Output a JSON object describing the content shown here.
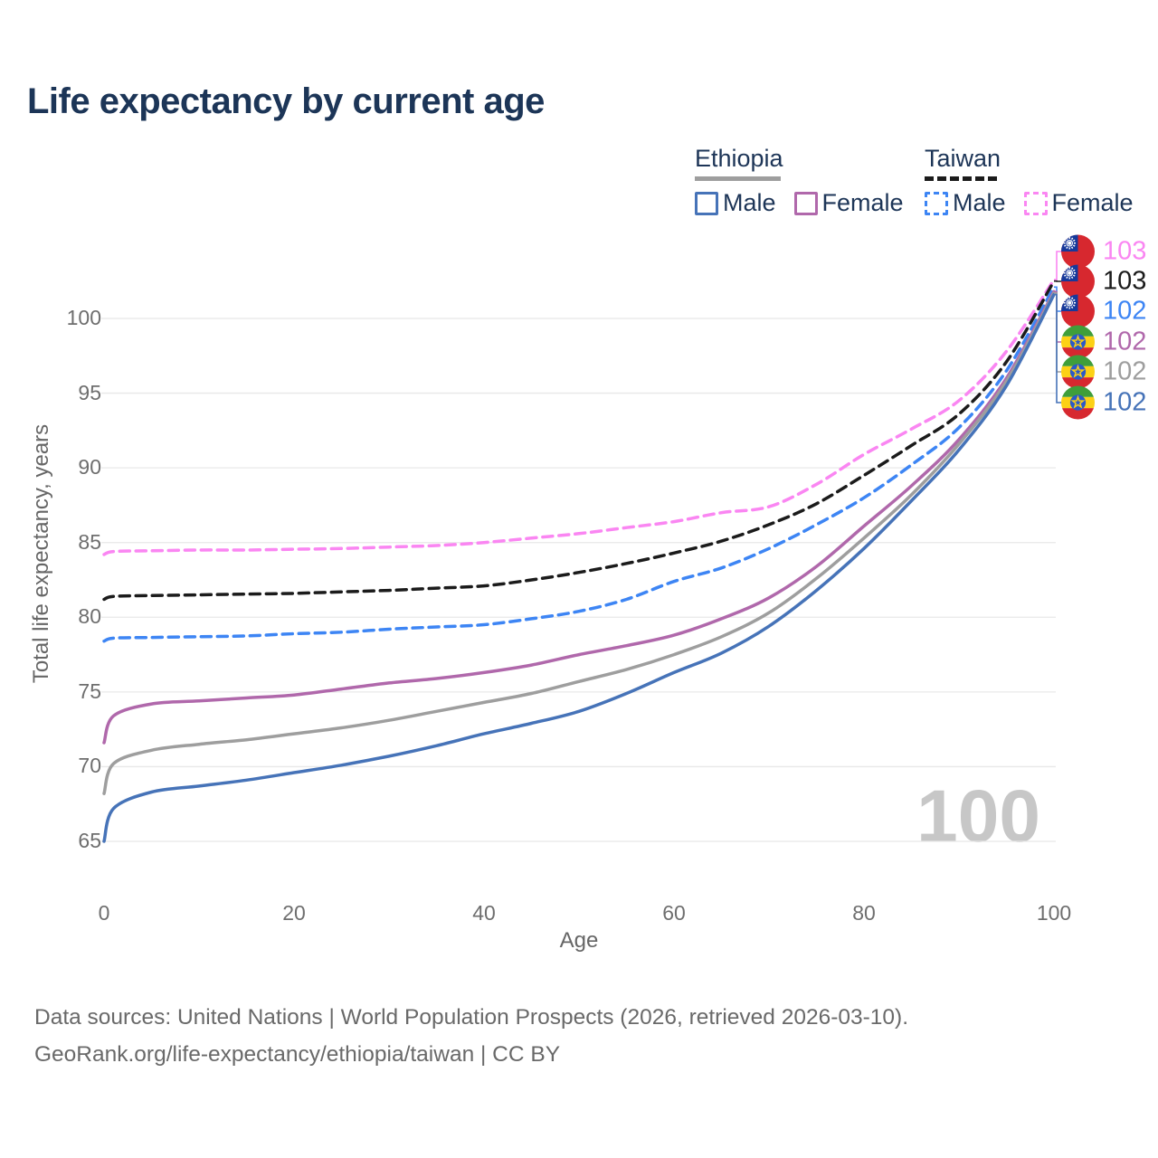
{
  "title": "Life expectancy by current age",
  "legend": {
    "groups": [
      {
        "label": "Ethiopia",
        "line_style": "solid",
        "line_color": "#9e9e9e",
        "items": [
          {
            "label": "Male",
            "color": "#4673b8"
          },
          {
            "label": "Female",
            "color": "#b068ab"
          }
        ]
      },
      {
        "label": "Taiwan",
        "line_style": "dashed",
        "line_color": "#1b1b1b",
        "items": [
          {
            "label": "Male",
            "color": "#3d85f4"
          },
          {
            "label": "Female",
            "color": "#fa86f2"
          }
        ]
      }
    ]
  },
  "chart_data": {
    "type": "line",
    "title": "Life expectancy by current age",
    "xlabel": "Age",
    "ylabel": "Total life expectancy, years",
    "xlim": [
      0,
      100
    ],
    "ylim": [
      65,
      100
    ],
    "xticks": [
      0,
      20,
      40,
      60,
      80,
      100
    ],
    "yticks": [
      65,
      70,
      75,
      80,
      85,
      90,
      95,
      100
    ],
    "grid": "horizontal",
    "legend_position": "top-right",
    "x": [
      0,
      1,
      5,
      10,
      15,
      20,
      25,
      30,
      35,
      40,
      45,
      50,
      55,
      60,
      65,
      70,
      75,
      80,
      85,
      90,
      95,
      100
    ],
    "series": [
      {
        "name": "Taiwan Female",
        "country": "Taiwan",
        "sex": "Female",
        "color": "#fa86f2",
        "dash": true,
        "end_label": "103",
        "flag": "taiwan",
        "values": [
          84.2,
          84.4,
          84.45,
          84.5,
          84.5,
          84.55,
          84.6,
          84.7,
          84.8,
          85.0,
          85.3,
          85.6,
          86.0,
          86.4,
          87.0,
          87.4,
          88.9,
          90.9,
          92.6,
          94.5,
          97.8,
          102.6
        ]
      },
      {
        "name": "Taiwan",
        "country": "Taiwan",
        "sex": "Both",
        "color": "#1b1b1b",
        "dash": true,
        "end_label": "103",
        "flag": "taiwan",
        "values": [
          81.2,
          81.4,
          81.45,
          81.5,
          81.55,
          81.6,
          81.7,
          81.8,
          81.95,
          82.1,
          82.5,
          83.0,
          83.6,
          84.3,
          85.1,
          86.2,
          87.6,
          89.5,
          91.5,
          93.6,
          97.1,
          102.5
        ]
      },
      {
        "name": "Taiwan Male",
        "country": "Taiwan",
        "sex": "Male",
        "color": "#3d85f4",
        "dash": true,
        "end_label": "102",
        "flag": "taiwan",
        "values": [
          78.4,
          78.6,
          78.65,
          78.7,
          78.75,
          78.9,
          79.0,
          79.2,
          79.35,
          79.5,
          79.9,
          80.4,
          81.2,
          82.4,
          83.3,
          84.6,
          86.2,
          88.0,
          90.2,
          92.7,
          96.5,
          102.1
        ]
      },
      {
        "name": "Ethiopia Female",
        "country": "Ethiopia",
        "sex": "Female",
        "color": "#b068ab",
        "dash": false,
        "end_label": "102",
        "flag": "ethiopia",
        "values": [
          71.6,
          73.4,
          74.2,
          74.4,
          74.6,
          74.8,
          75.2,
          75.6,
          75.9,
          76.3,
          76.8,
          77.5,
          78.1,
          78.8,
          79.9,
          81.3,
          83.4,
          86.1,
          88.8,
          91.9,
          96.0,
          101.8
        ]
      },
      {
        "name": "Ethiopia",
        "country": "Ethiopia",
        "sex": "Both",
        "color": "#9e9e9e",
        "dash": false,
        "end_label": "102",
        "flag": "ethiopia",
        "values": [
          68.2,
          70.2,
          71.1,
          71.5,
          71.8,
          72.2,
          72.6,
          73.1,
          73.7,
          74.3,
          74.9,
          75.7,
          76.5,
          77.5,
          78.7,
          80.3,
          82.6,
          85.3,
          88.2,
          91.6,
          95.8,
          101.7
        ]
      },
      {
        "name": "Ethiopia Male",
        "country": "Ethiopia",
        "sex": "Male",
        "color": "#4673b8",
        "dash": false,
        "end_label": "102",
        "flag": "ethiopia",
        "values": [
          65.0,
          67.2,
          68.3,
          68.7,
          69.1,
          69.6,
          70.1,
          70.7,
          71.4,
          72.2,
          72.9,
          73.7,
          74.9,
          76.3,
          77.6,
          79.4,
          81.8,
          84.6,
          87.8,
          91.2,
          95.5,
          101.6
        ]
      }
    ]
  },
  "watermark": "100",
  "footer": {
    "line1": "Data sources: United Nations | World Population Prospects (2026, retrieved 2026-03-10).",
    "line2": "GeoRank.org/life-expectancy/ethiopia/taiwan | CC BY"
  },
  "colors": {
    "title_text": "#1c3557",
    "axis_text": "#6e6e6e",
    "gridline": "#e8e8e8",
    "watermark": "#c7c7c7"
  }
}
